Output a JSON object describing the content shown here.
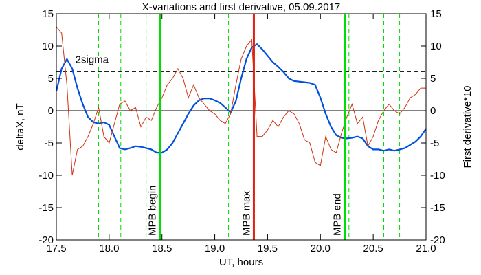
{
  "chart_data": {
    "type": "line",
    "title": "X-variations and first derivative, 05.09.2017",
    "xlabel": "UT, hours",
    "x": [
      17.5,
      17.55,
      17.6,
      17.65,
      17.7,
      17.75,
      17.8,
      17.85,
      17.9,
      17.95,
      18.0,
      18.05,
      18.1,
      18.15,
      18.2,
      18.25,
      18.3,
      18.35,
      18.4,
      18.45,
      18.5,
      18.55,
      18.6,
      18.65,
      18.7,
      18.75,
      18.8,
      18.85,
      18.9,
      18.95,
      19.0,
      19.05,
      19.1,
      19.15,
      19.2,
      19.25,
      19.3,
      19.35,
      19.4,
      19.45,
      19.5,
      19.55,
      19.6,
      19.65,
      19.7,
      19.75,
      19.8,
      19.85,
      19.9,
      19.95,
      20.0,
      20.05,
      20.1,
      20.15,
      20.2,
      20.25,
      20.3,
      20.35,
      20.4,
      20.45,
      20.5,
      20.55,
      20.6,
      20.65,
      20.7,
      20.75,
      20.8,
      20.85,
      20.9,
      20.95,
      21.0
    ],
    "series": [
      {
        "name": "deltaX, nT",
        "color": "#0050e0",
        "values": [
          3,
          6.5,
          8,
          6.5,
          3.5,
          1,
          -1,
          -1.8,
          -2,
          -1.8,
          -2.2,
          -4,
          -5.8,
          -6,
          -5.8,
          -5.5,
          -5.6,
          -5.8,
          -6,
          -6.5,
          -6.5,
          -6,
          -5,
          -3.5,
          -2,
          -0.5,
          0.8,
          1.6,
          1.9,
          1.9,
          1.6,
          1.2,
          0.5,
          -0.3,
          1.5,
          5,
          8,
          9.8,
          10.3,
          9.5,
          8.5,
          7.5,
          6.8,
          6,
          5,
          4.6,
          4.5,
          4.4,
          4.3,
          4,
          2,
          -0.5,
          -2.5,
          -3.8,
          -4.2,
          -4.3,
          -4.2,
          -4,
          -4.3,
          -5.5,
          -6,
          -6,
          -6.2,
          -6,
          -6.2,
          -6,
          -5.8,
          -5.3,
          -4.8,
          -4,
          -2.8
        ]
      },
      {
        "name": "First derivative*10",
        "color": "#d03010",
        "axis": "y2",
        "values": [
          13,
          12,
          4,
          -10,
          -6,
          -5.5,
          -4,
          -2,
          0.5,
          -4,
          -5,
          -2,
          1,
          1.5,
          0,
          0.5,
          -2.5,
          -1,
          -1.5,
          0.5,
          2,
          4,
          5,
          6.5,
          5,
          2,
          4,
          2,
          1,
          0,
          -0.5,
          -1.5,
          -2,
          -0.5,
          4,
          8,
          10,
          11,
          -4,
          -4,
          -3,
          -1.5,
          -2.5,
          -1,
          0,
          -0.5,
          -2,
          -4.5,
          -5,
          -8,
          -8.5,
          -4,
          -6,
          -6.5,
          -3.5,
          -1,
          1,
          -2,
          -1,
          -5.5,
          -4,
          -1.5,
          0,
          1,
          0,
          -0.5,
          0.5,
          2,
          2.5,
          3.5,
          3.5
        ]
      }
    ],
    "xlim": [
      17.5,
      21.0
    ],
    "xticks": [
      17.5,
      {
        "value": 18,
        "label": "18.0"
      },
      18.5,
      {
        "value": 19,
        "label": "19.0"
      },
      19.5,
      {
        "value": 20,
        "label": "20.0"
      },
      20.5,
      {
        "value": 21,
        "label": "21.0"
      }
    ],
    "ylim": [
      -20,
      15
    ],
    "yticks": [
      -20,
      -15,
      -10,
      -5,
      0,
      5,
      10,
      15
    ],
    "y2lim": [
      -20,
      15
    ],
    "y2ticks": [
      -20,
      -15,
      -10,
      -5,
      0,
      5,
      10,
      15
    ],
    "hline": {
      "y": 6.1,
      "label": "2sigma"
    },
    "markers": [
      {
        "x": 18.48,
        "label": "MPB begin",
        "color": "#00dd00"
      },
      {
        "x": 19.37,
        "label": "MPB max",
        "color": "#e02010"
      },
      {
        "x": 20.23,
        "label": "MPB end",
        "color": "#00dd00"
      }
    ],
    "dashed_x": [
      17.9,
      18.11,
      18.35,
      19.13,
      20.27,
      20.47,
      20.6,
      20.75
    ],
    "dashed_color": "#00dd00"
  }
}
